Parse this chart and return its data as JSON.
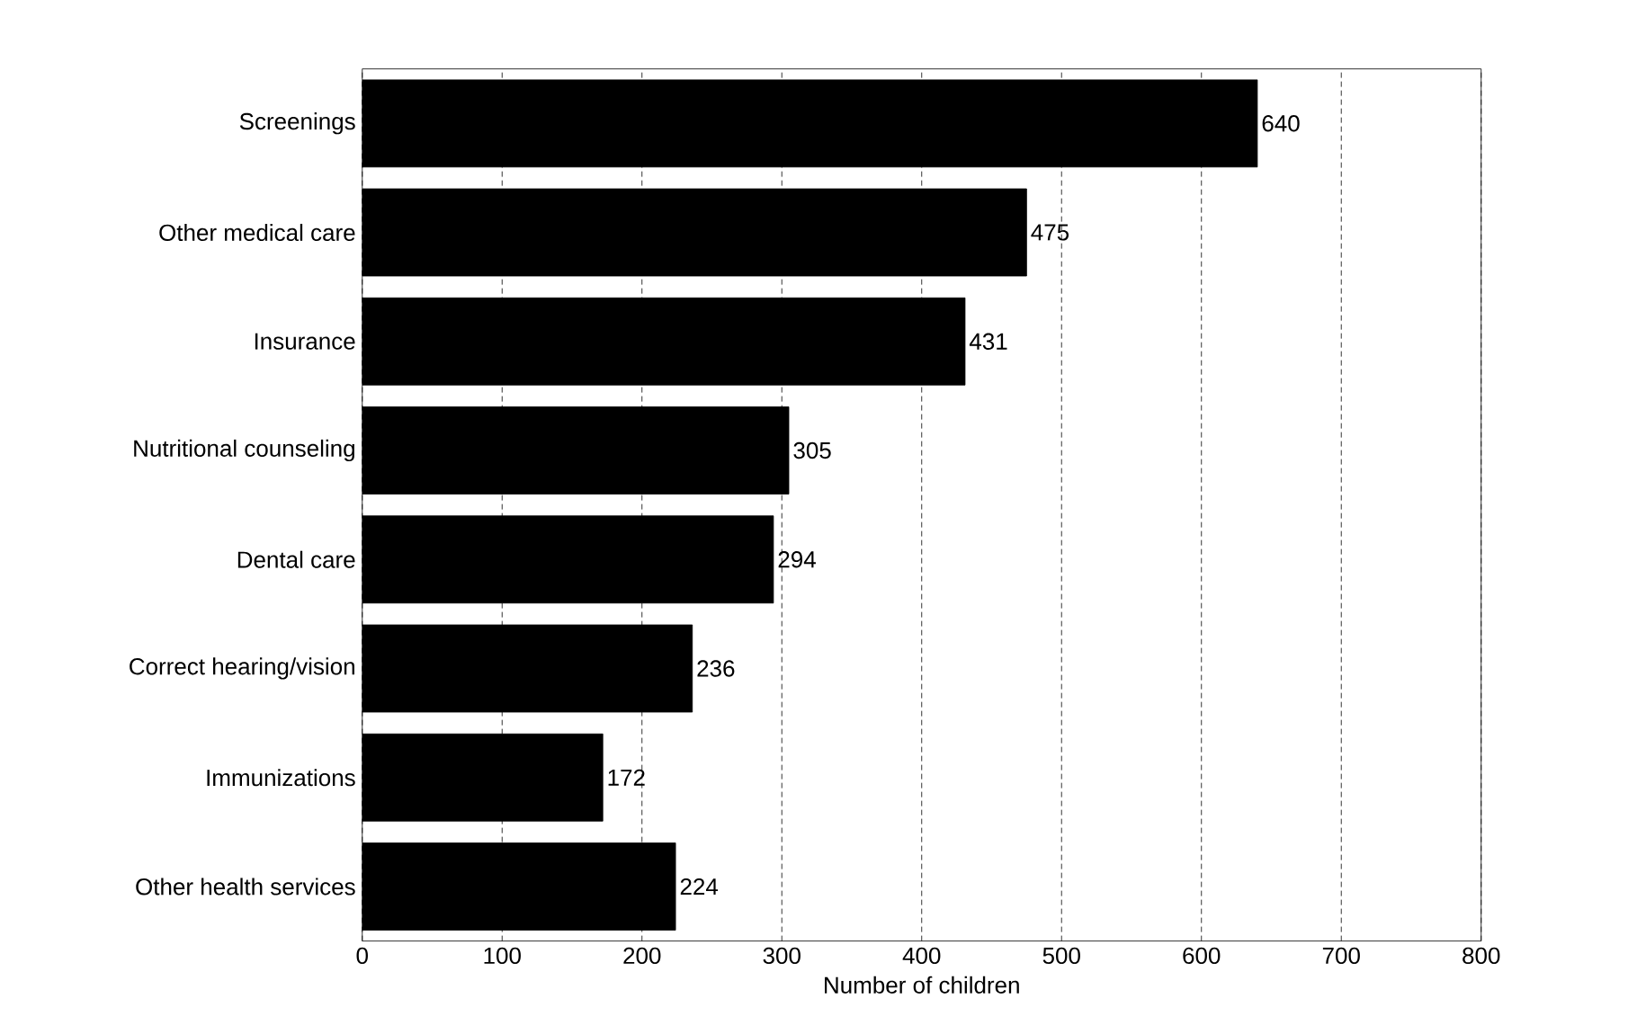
{
  "chart_data": {
    "type": "bar",
    "orientation": "horizontal",
    "xlabel": "Number of children",
    "categories": [
      "Screenings",
      "Other medical care",
      "Insurance",
      "Nutritional counseling",
      "Dental care",
      "Correct hearing/vision",
      "Immunizations",
      "Other health services"
    ],
    "values": [
      640,
      475,
      431,
      305,
      294,
      236,
      172,
      224
    ],
    "color": "#000000",
    "xlim": [
      0,
      800
    ],
    "xticks": [
      0,
      100,
      200,
      300,
      400,
      500,
      600,
      700,
      800
    ],
    "grid": "x",
    "data_labels": true
  }
}
